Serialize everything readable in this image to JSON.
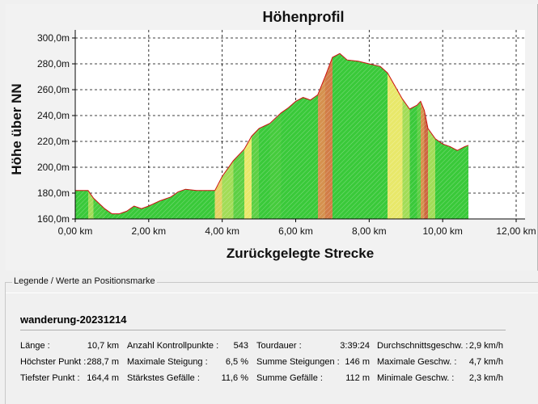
{
  "chart_data": {
    "type": "area",
    "title": "Höhenprofil",
    "xlabel": "Zurückgelegte Strecke",
    "ylabel": "Höhe über NN",
    "xlim": [
      0,
      12
    ],
    "ylim": [
      160,
      300
    ],
    "x_ticks": [
      "0,00 km",
      "2,00 km",
      "4,00 km",
      "6,00 km",
      "8,00 km",
      "10,00 km",
      "12,00 km"
    ],
    "y_ticks": [
      "160,0m",
      "180,0m",
      "200,0m",
      "220,0m",
      "240,0m",
      "260,0m",
      "280,0m",
      "300,0m"
    ],
    "grid": true,
    "x": [
      0.0,
      0.35,
      0.5,
      0.8,
      1.0,
      1.2,
      1.4,
      1.6,
      1.8,
      2.0,
      2.3,
      2.6,
      2.8,
      3.0,
      3.3,
      3.6,
      3.8,
      4.0,
      4.3,
      4.6,
      4.8,
      5.0,
      5.3,
      5.6,
      5.8,
      6.0,
      6.2,
      6.4,
      6.6,
      6.8,
      7.0,
      7.2,
      7.4,
      7.7,
      8.0,
      8.3,
      8.5,
      8.7,
      8.9,
      9.1,
      9.3,
      9.4,
      9.5,
      9.6,
      9.8,
      10.0,
      10.2,
      10.4,
      10.6,
      10.7
    ],
    "y": [
      182,
      182,
      176,
      168,
      164,
      164,
      166,
      170,
      168,
      170,
      174,
      177,
      181,
      183,
      182,
      182,
      182,
      193,
      205,
      214,
      224,
      230,
      234,
      242,
      246,
      251,
      254,
      252,
      256,
      270,
      285,
      288,
      283,
      282,
      280,
      278,
      273,
      263,
      253,
      245,
      248,
      251,
      244,
      230,
      222,
      218,
      216,
      213,
      216,
      217
    ],
    "gradient_colors": {
      "flat": "#3ac93a",
      "moderate": "#e8e86a",
      "steep": "#cc6640"
    }
  },
  "legend": {
    "title": "Legende / Werte an Positionsmarke",
    "track_name": "wanderung-20231214",
    "stats": [
      {
        "label": "Länge :",
        "value": "10,7 km"
      },
      {
        "label": "Höchster Punkt :",
        "value": "288,7 m"
      },
      {
        "label": "Tiefster Punkt :",
        "value": "164,4 m"
      },
      {
        "label": "Anzahl Kontrollpunkte :",
        "value": "543"
      },
      {
        "label": "Maximale Steigung :",
        "value": "6,5 %"
      },
      {
        "label": "Stärkstes Gefälle :",
        "value": "11,6 %"
      },
      {
        "label": "Tourdauer :",
        "value": "3:39:24"
      },
      {
        "label": "Summe Steigungen :",
        "value": "146 m"
      },
      {
        "label": "Summe Gefälle :",
        "value": "112 m"
      },
      {
        "label": "Durchschnittsgeschw. :",
        "value": "2,9 km/h"
      },
      {
        "label": "Maximale Geschw. :",
        "value": "4,7 km/h"
      },
      {
        "label": "Minimale Geschw. :",
        "value": "2,3 km/h"
      }
    ]
  }
}
